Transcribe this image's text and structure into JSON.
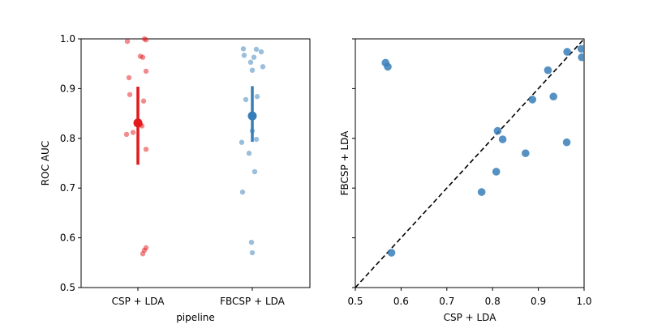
{
  "colors": {
    "csp": "#e41a1c",
    "fbcsp": "#377eb8"
  },
  "chart_data": [
    {
      "type": "scatter",
      "subtype": "strip-with-point-estimate",
      "xlabel": "pipeline",
      "ylabel": "ROC AUC",
      "ylim": [
        0.5,
        1.0
      ],
      "yticks": [
        0.5,
        0.6,
        0.7,
        0.8,
        0.9,
        1.0
      ],
      "ytick_labels": [
        "0.5",
        "0.6",
        "0.7",
        "0.8",
        "0.9",
        "1.0"
      ],
      "categories": [
        "CSP + LDA",
        "FBCSP + LDA"
      ],
      "series": [
        {
          "category": "CSP + LDA",
          "values": [
            0.995,
            1.0,
            0.998,
            0.965,
            0.963,
            0.935,
            0.922,
            0.888,
            0.875,
            0.825,
            0.828,
            0.812,
            0.808,
            0.778,
            0.58,
            0.575,
            0.568
          ],
          "mean": 0.831,
          "ci": [
            0.747,
            0.904
          ]
        },
        {
          "category": "FBCSP + LDA",
          "values": [
            0.98,
            0.979,
            0.974,
            0.967,
            0.963,
            0.953,
            0.944,
            0.937,
            0.884,
            0.878,
            0.815,
            0.798,
            0.792,
            0.77,
            0.733,
            0.692,
            0.591,
            0.57
          ],
          "mean": 0.845,
          "ci": [
            0.793,
            0.905
          ]
        }
      ]
    },
    {
      "type": "scatter",
      "xlabel": "CSP + LDA",
      "ylabel": "FBCSP + LDA",
      "xlim": [
        0.5,
        1.0
      ],
      "ylim": [
        0.5,
        1.0
      ],
      "xticks": [
        0.5,
        0.6,
        0.7,
        0.8,
        0.9,
        1.0
      ],
      "xtick_labels": [
        "0.5",
        "0.6",
        "0.7",
        "0.8",
        "0.9",
        "1.0"
      ],
      "yticks": [
        0.5,
        0.6,
        0.7,
        0.8,
        0.9,
        1.0
      ],
      "diagonal": true,
      "points": [
        {
          "x": 0.566,
          "y": 0.952
        },
        {
          "x": 0.571,
          "y": 0.944
        },
        {
          "x": 0.579,
          "y": 0.57
        },
        {
          "x": 0.776,
          "y": 0.692
        },
        {
          "x": 0.808,
          "y": 0.733
        },
        {
          "x": 0.811,
          "y": 0.815
        },
        {
          "x": 0.822,
          "y": 0.798
        },
        {
          "x": 0.872,
          "y": 0.77
        },
        {
          "x": 0.887,
          "y": 0.878
        },
        {
          "x": 0.921,
          "y": 0.937
        },
        {
          "x": 0.933,
          "y": 0.884
        },
        {
          "x": 0.962,
          "y": 0.792
        },
        {
          "x": 0.963,
          "y": 0.974
        },
        {
          "x": 0.994,
          "y": 0.98
        },
        {
          "x": 0.995,
          "y": 0.963
        }
      ]
    }
  ]
}
